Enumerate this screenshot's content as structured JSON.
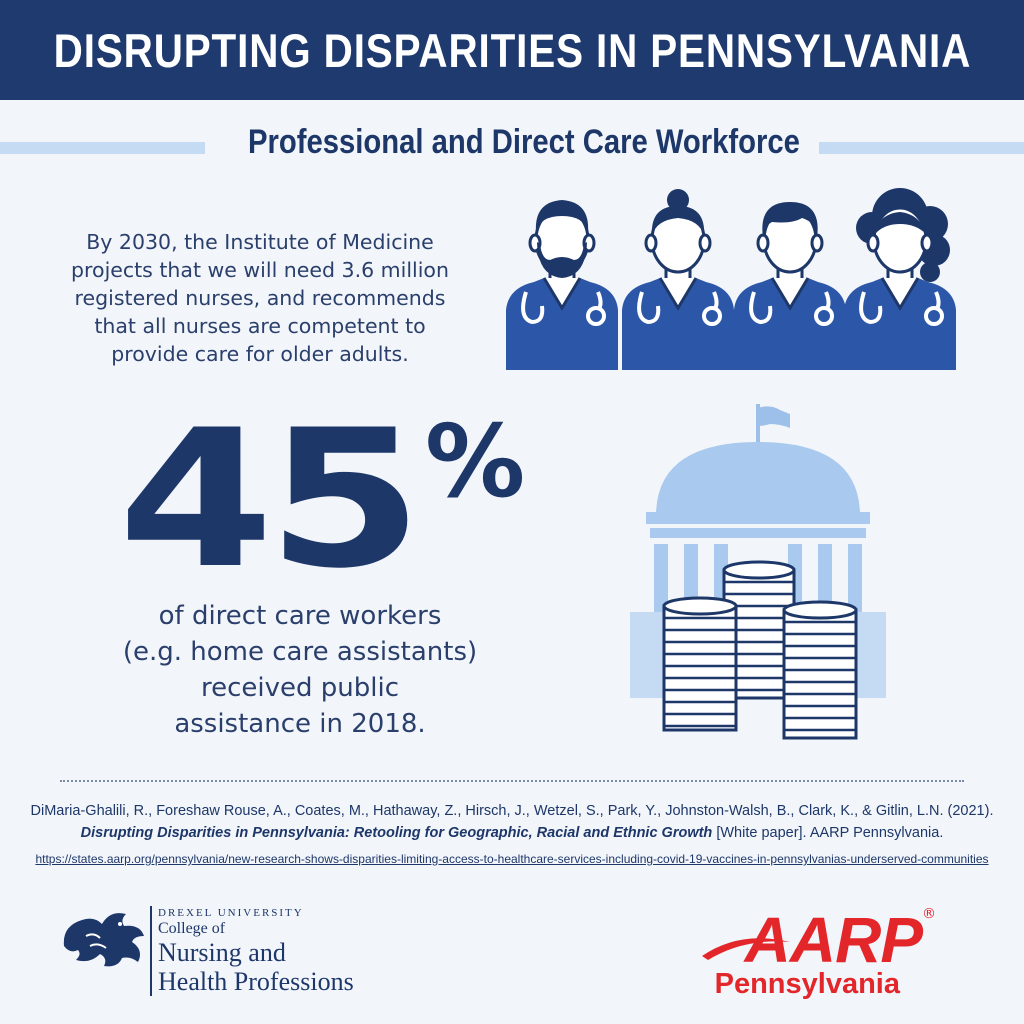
{
  "header": {
    "title": "DISRUPTING DISPARITIES IN PENNSYLVANIA",
    "subtitle": "Professional and Direct Care Workforce"
  },
  "intro": {
    "line1": "By 2030, the Institute of Medicine",
    "line2": "projects that we will need 3.6 million",
    "line3": "registered nurses, and recommends",
    "line4": "that all nurses are competent to",
    "line5": "provide care for older adults."
  },
  "stat": {
    "number": "45",
    "percent_sign": "%",
    "line1": "of direct care workers",
    "line2": "(e.g. home care assistants)",
    "line3": "received public",
    "line4": "assistance in 2018."
  },
  "citation": {
    "authors": "DiMaria-Ghalili, R., Foreshaw Rouse, A., Coates, M., Hathaway, Z., Hirsch, J., Wetzel, S., Park, Y., Johnston-Walsh, B., Clark, K., & Gitlin, L.N. (2021).",
    "title": "Disrupting Disparities in Pennsylvania: Retooling for Geographic, Racial and Ethnic Growth",
    "suffix": " [White paper]. AARP Pennsylvania.",
    "url": "https://states.aarp.org/pennsylvania/new-research-shows-disparities-limiting-access-to-healthcare-services-including-covid-19-vaccines-in-pennsylvanias-underserved-communities"
  },
  "logos": {
    "drexel_university": "DREXEL UNIVERSITY",
    "drexel_college_of": "College of",
    "drexel_line1": "Nursing and",
    "drexel_line2": "Health Professions",
    "aarp_word": "AARP",
    "aarp_reg": "®",
    "aarp_state": "Pennsylvania"
  },
  "colors": {
    "navy": "#1f3a6e",
    "scrub_blue": "#2c57a8",
    "light_blue": "#c5daf3",
    "aarp_red": "#e3262a"
  },
  "icons": [
    "nurse-icon",
    "capitol-dome-icon",
    "coin-stack-icon",
    "dragon-logo-icon",
    "aarp-swoosh-icon"
  ]
}
